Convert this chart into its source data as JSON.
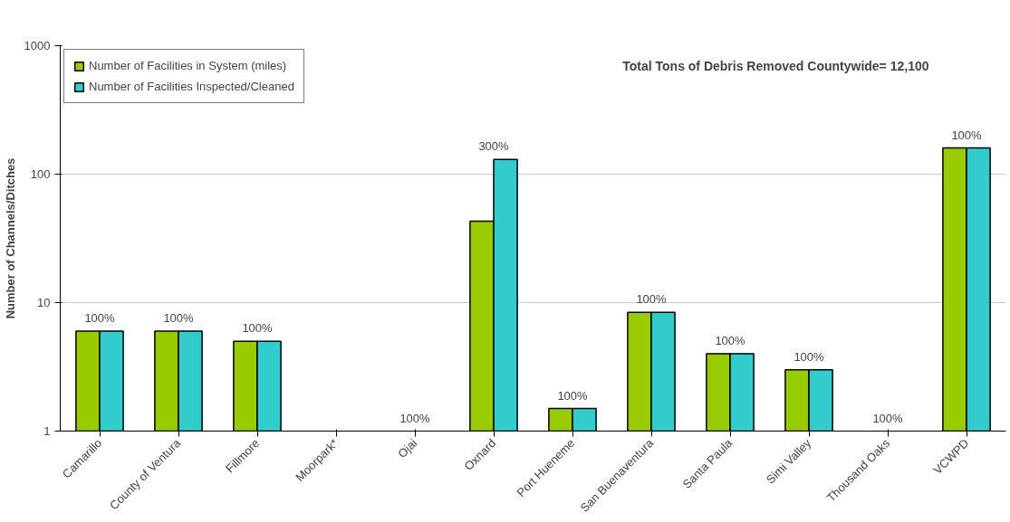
{
  "chart_data": {
    "type": "bar",
    "ylabel": "Number of Channels/Ditches",
    "log": true,
    "categories": [
      "Camarillo",
      "County of Ventura",
      "Fillmore",
      "Moorpark*",
      "Ojai",
      "Oxnard",
      "Port Hueneme",
      "San Buenaventura",
      "Santa Paula",
      "Simi Valley",
      "Thousand Oaks",
      "VCWPD"
    ],
    "series": [
      {
        "name": "Number of Facilities in System (miles)",
        "color": "#99cc00",
        "values": [
          6,
          6,
          5,
          null,
          null,
          43,
          1.5,
          8.4,
          4,
          3,
          null,
          160
        ]
      },
      {
        "name": "Number of Facilities Inspected/Cleaned",
        "color": "#33cccc",
        "values": [
          6,
          6,
          5,
          null,
          null,
          130,
          1.5,
          8.4,
          4,
          3,
          null,
          160
        ]
      }
    ],
    "value_labels": [
      "100%",
      "100%",
      "100%",
      null,
      "100%",
      "300%",
      "100%",
      "100%",
      "100%",
      "100%",
      "100%",
      "100%"
    ],
    "annotations": [
      "Total Tons of Debris Removed Countywide= 12,100"
    ],
    "ylim": [
      1,
      1000
    ],
    "yticks": [
      1,
      10,
      100,
      1000
    ],
    "grid": "y",
    "legend": "top left"
  }
}
